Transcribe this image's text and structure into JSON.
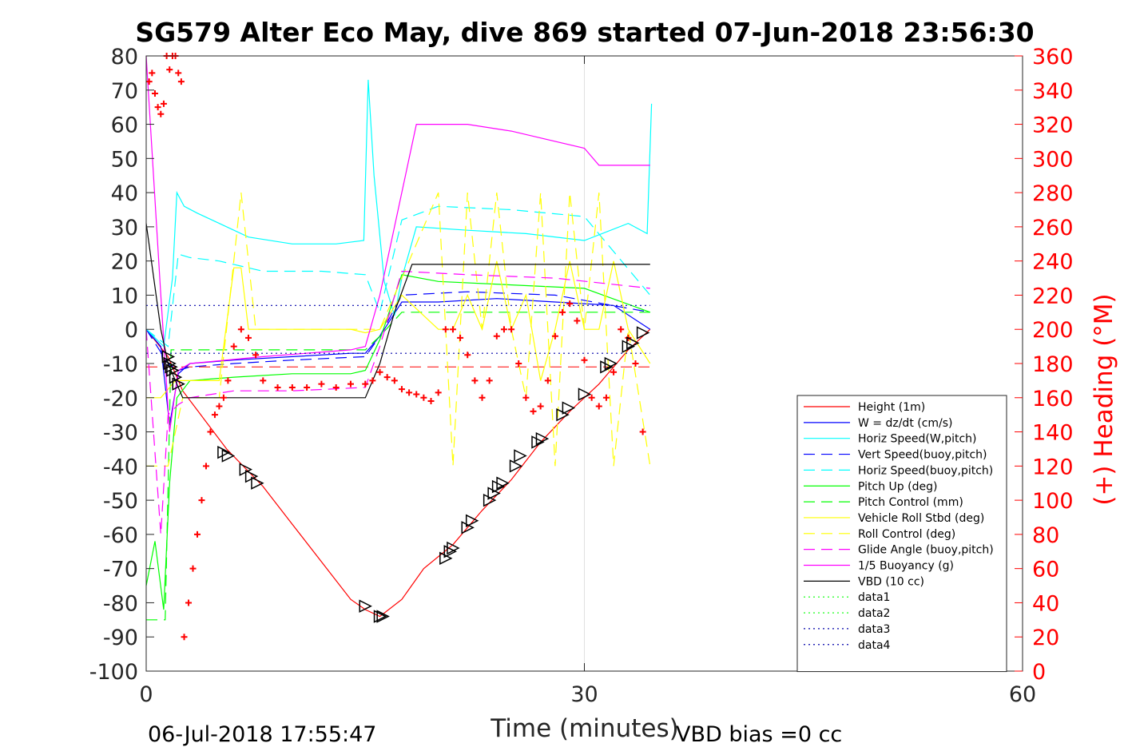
{
  "title": "SG579 Alter Eco May, dive 869 started 07-Jun-2018 23:56:30",
  "footer_left": "06-Jul-2018 17:55:47",
  "footer_right": "VBD bias =0 cc",
  "chart_data": {
    "type": "line",
    "title": "SG579 Alter Eco May, dive 869 started 07-Jun-2018 23:56:30",
    "xlabel": "Time (minutes)",
    "ylabel": "",
    "y2label": "(+) Heading (°M)",
    "xlim": [
      0,
      60
    ],
    "ylim": [
      -100,
      80
    ],
    "y2lim": [
      0,
      360
    ],
    "xticks": [
      0,
      30,
      60
    ],
    "yticks": [
      -100,
      -90,
      -80,
      -70,
      -60,
      -50,
      -40,
      -30,
      -20,
      -10,
      0,
      10,
      20,
      30,
      40,
      50,
      60,
      70,
      80
    ],
    "y2ticks": [
      0,
      20,
      40,
      60,
      80,
      100,
      120,
      140,
      160,
      180,
      200,
      220,
      240,
      260,
      280,
      300,
      320,
      340,
      360
    ],
    "grid": "major x only",
    "legend_position": "lower-right",
    "series": [
      {
        "name": "Height (1m)",
        "color": "#ff0000",
        "style": "solid",
        "x": [
          0,
          1.5,
          2.5,
          5.5,
          8,
          10,
          12,
          14,
          15,
          16,
          17.5,
          19,
          21,
          23,
          25,
          27,
          29,
          31,
          33,
          34.5
        ],
        "y": [
          0,
          -8,
          -18,
          -35,
          -46,
          -57,
          -68,
          -79,
          -82,
          -84,
          -79,
          -70,
          -63,
          -53,
          -44,
          -33,
          -24,
          -16,
          -6,
          0
        ]
      },
      {
        "name": "W = dz/dt (cm/s)",
        "color": "#0000ff",
        "style": "solid",
        "x": [
          0,
          1,
          1.6,
          2.2,
          3,
          6,
          10,
          14,
          15,
          16,
          17.5,
          20,
          24,
          28,
          32,
          34.5
        ],
        "y": [
          0,
          -5,
          -28,
          -13,
          -10,
          -9,
          -8,
          -7,
          -7,
          -2,
          8,
          8,
          9,
          8,
          7,
          0
        ]
      },
      {
        "name": "Horiz Speed(W,pitch)",
        "color": "#00ffff",
        "style": "solid",
        "x": [
          0,
          1.2,
          1.8,
          2.1,
          2.6,
          3.5,
          5,
          7,
          10,
          13,
          14.9,
          15.2,
          15.6,
          16.3,
          17,
          17.5,
          18.5,
          22,
          26,
          30,
          33,
          34.3,
          34.6
        ],
        "y": [
          0,
          -5,
          15,
          40,
          36,
          34,
          31,
          27,
          25,
          25,
          26,
          73,
          45,
          14,
          4,
          15,
          30,
          29,
          28,
          26,
          31,
          28,
          66
        ]
      },
      {
        "name": "Vert Speed(buoy,pitch)",
        "color": "#0000ff",
        "style": "dashed",
        "x": [
          0,
          1.5,
          2.2,
          3,
          6,
          10,
          15,
          16,
          17.5,
          22,
          28,
          34.5
        ],
        "y": [
          0,
          -10,
          -12,
          -11,
          -10,
          -9,
          -8,
          -2,
          10,
          11,
          10,
          5
        ]
      },
      {
        "name": "Horiz Speed(buoy,pitch)",
        "color": "#00ffff",
        "style": "dashed",
        "x": [
          0,
          1.5,
          2.2,
          3,
          5,
          8,
          12,
          15,
          16,
          17.5,
          20,
          25,
          30,
          34.5
        ],
        "y": [
          0,
          -5,
          22,
          21,
          20,
          17,
          17,
          16,
          5,
          32,
          36,
          35,
          33,
          10
        ]
      },
      {
        "name": "Pitch Up (deg)",
        "color": "#00ff00",
        "style": "solid",
        "x": [
          0,
          0.6,
          1.2,
          1.6,
          2.1,
          3,
          6,
          10,
          14,
          15,
          16,
          17.5,
          20,
          25,
          30,
          34.5
        ],
        "y": [
          -75,
          -62,
          -82,
          -45,
          -20,
          -15,
          -14,
          -13,
          -13,
          -12,
          -3,
          16,
          14,
          13,
          12,
          5
        ]
      },
      {
        "name": "Pitch Control (mm)",
        "color": "#00ff00",
        "style": "dashed",
        "x": [
          0,
          1.3,
          1.7,
          15,
          16,
          17.5,
          34.5
        ],
        "y": [
          -85,
          -85,
          -6,
          -6,
          -2,
          5,
          5
        ]
      },
      {
        "name": "Vehicle Roll Stbd (deg)",
        "color": "#ffff00",
        "style": "solid",
        "x": [
          0,
          1,
          2,
          5,
          6,
          6.5,
          7,
          14,
          15,
          16,
          17.5,
          20,
          21,
          22,
          23,
          24,
          25,
          26,
          27,
          28,
          29,
          30,
          31,
          32,
          33,
          34.5
        ],
        "y": [
          -20,
          -20,
          -15,
          -15,
          18,
          18,
          0,
          0,
          -1,
          0,
          10,
          0,
          0,
          10,
          0,
          20,
          0,
          10,
          -15,
          0,
          20,
          0,
          0,
          20,
          0,
          -10
        ]
      },
      {
        "name": "Roll Control (deg)",
        "color": "#ffff00",
        "style": "dashed",
        "x": [
          0,
          1.5,
          2.5,
          5,
          6.5,
          7,
          7.5,
          15,
          16,
          18,
          20,
          21,
          22,
          23,
          24,
          25,
          26,
          27,
          28,
          29,
          30,
          31,
          32,
          33,
          34.5
        ],
        "y": [
          -40,
          -40,
          -20,
          -20,
          40,
          20,
          0,
          0,
          0,
          20,
          40,
          -40,
          40,
          0,
          40,
          0,
          -20,
          40,
          -40,
          40,
          0,
          40,
          -40,
          0,
          -40
        ]
      },
      {
        "name": "Glide Angle (buoy,pitch)",
        "color": "#ff00ff",
        "style": "dashed",
        "x": [
          0,
          1,
          1.5,
          2.2,
          3,
          6,
          10,
          15,
          16,
          17.5,
          22,
          28,
          34.5
        ],
        "y": [
          0,
          -60,
          -25,
          -22,
          -20,
          -18,
          -18,
          -17,
          -5,
          17,
          16,
          15,
          12
        ]
      },
      {
        "name": "1/5 Buoyancy (g)",
        "color": "#ff00ff",
        "style": "solid",
        "x": [
          0,
          1,
          1.6,
          2.2,
          3,
          8,
          14,
          15,
          16,
          17,
          18.5,
          19,
          22,
          25,
          27,
          30,
          31,
          34.5
        ],
        "y": [
          80,
          10,
          -30,
          -12,
          -10,
          -8,
          -6,
          -5,
          10,
          30,
          60,
          60,
          60,
          58,
          56,
          53,
          48,
          48
        ]
      },
      {
        "name": "VBD (10 cc)",
        "color": "#000000",
        "style": "solid",
        "x": [
          0,
          1,
          1.5,
          2.5,
          8,
          14,
          15,
          16,
          17,
          18.2,
          20,
          25,
          30,
          34.5
        ],
        "y": [
          31,
          0,
          -10,
          -20,
          -20,
          -20,
          -20,
          -10,
          5,
          19,
          19,
          19,
          19,
          19
        ]
      },
      {
        "name": "data1",
        "color": "#00ff00",
        "style": "dotted",
        "x": [],
        "y": []
      },
      {
        "name": "data2",
        "color": "#00ff00",
        "style": "dotted",
        "x": [],
        "y": []
      },
      {
        "name": "data3",
        "color": "#0000aa",
        "style": "dotted",
        "x": [
          0,
          34.5
        ],
        "y": [
          7,
          7
        ]
      },
      {
        "name": "data4",
        "color": "#0000aa",
        "style": "dotted",
        "x": [
          0,
          34.5
        ],
        "y": [
          -7,
          -7
        ]
      }
    ],
    "reference_lines": [
      {
        "color": "#ff0000",
        "style": "dashed",
        "y": -11,
        "x": [
          0,
          34.5
        ]
      }
    ],
    "heading_points": {
      "color": "#ff0000",
      "marker": "+",
      "x": [
        0.2,
        0.4,
        0.6,
        0.8,
        1.0,
        1.2,
        1.4,
        1.6,
        1.8,
        2.0,
        2.2,
        2.4,
        2.6,
        2.9,
        3.2,
        3.5,
        3.8,
        4.1,
        4.4,
        4.7,
        5.0,
        5.3,
        5.6,
        6.0,
        6.5,
        7.0,
        7.5,
        8,
        9,
        10,
        11,
        12,
        13,
        14,
        15,
        15.5,
        16,
        16.5,
        17,
        17.5,
        18,
        18.5,
        19,
        19.5,
        20,
        20.5,
        21,
        21.5,
        22,
        22.5,
        23,
        23.5,
        24,
        24.5,
        25,
        25.5,
        26,
        26.5,
        27,
        27.5,
        28,
        28.5,
        29,
        29.5,
        30,
        30.5,
        31,
        31.5,
        32,
        32.5,
        33,
        33.5,
        34
      ],
      "y": [
        345,
        350,
        338,
        330,
        326,
        332,
        360,
        352,
        360,
        360,
        350,
        345,
        20,
        40,
        60,
        80,
        100,
        120,
        140,
        150,
        155,
        160,
        170,
        190,
        200,
        195,
        185,
        170,
        166,
        166,
        166,
        168,
        166,
        168,
        168,
        170,
        175,
        172,
        170,
        165,
        163,
        162,
        160,
        158,
        163,
        200,
        200,
        195,
        185,
        170,
        160,
        170,
        196,
        200,
        200,
        180,
        160,
        152,
        155,
        170,
        196,
        210,
        215,
        205,
        182,
        160,
        155,
        160,
        175,
        200,
        195,
        180,
        140
      ]
    },
    "glider_markers": {
      "marker": "triangle",
      "color": "#000000",
      "x": [
        1.5,
        1.6,
        1.7,
        1.8,
        2.0,
        2.2,
        5.3,
        5.6,
        6.8,
        7.2,
        7.6,
        15,
        16,
        16.2,
        20.5,
        20.8,
        21,
        22,
        22.3,
        23.5,
        23.8,
        24.1,
        24.4,
        25.3,
        25.6,
        26.8,
        27.1,
        28.5,
        28.9,
        30,
        31.5,
        31.8,
        33,
        33.3,
        34
      ],
      "y": [
        -8,
        -10,
        -11,
        -12,
        -14,
        -16,
        -36,
        -37,
        -41,
        -43,
        -45,
        -81,
        -84,
        -84,
        -67,
        -65,
        -64,
        -58,
        -56,
        -50,
        -48,
        -46,
        -45,
        -40,
        -37,
        -33,
        -32,
        -25,
        -23,
        -19,
        -11,
        -10,
        -5,
        -4,
        -1
      ]
    }
  }
}
